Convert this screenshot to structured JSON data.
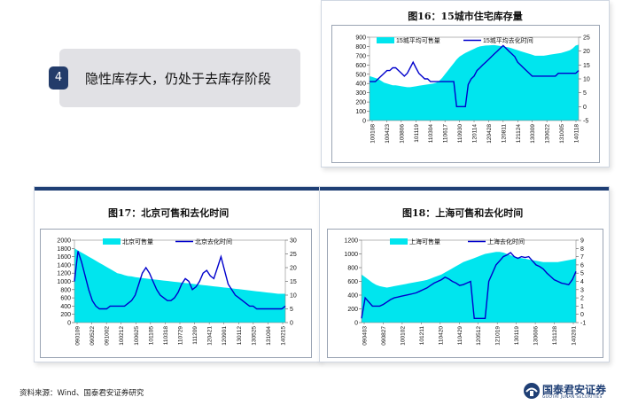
{
  "bullet": {
    "number": "4",
    "text": "隐性库存大，仍处于去库存阶段"
  },
  "footer": {
    "source": "资料来源：Wind、国泰君安证券研究",
    "logo_name": "国泰君安证券",
    "logo_sub": "GUOTAI JUNAN SECURITIES"
  },
  "chart_data": [
    {
      "id": "fig16",
      "type": "area+line",
      "title": "图16：15城市住宅库存量",
      "series": [
        {
          "name": "15城平均可售量",
          "type": "area",
          "axis": "left",
          "color": "#00e5ee",
          "values": [
            480,
            470,
            460,
            450,
            430,
            410,
            400,
            390,
            380,
            380,
            375,
            370,
            365,
            360,
            360,
            365,
            370,
            375,
            380,
            385,
            390,
            395,
            400,
            410,
            430,
            460,
            500,
            540,
            580,
            620,
            660,
            690,
            710,
            730,
            745,
            760,
            775,
            790,
            800,
            805,
            810,
            812,
            814,
            815,
            810,
            805,
            800,
            795,
            790,
            780,
            770,
            760,
            750,
            740,
            730,
            720,
            710,
            700,
            700,
            700,
            700,
            705,
            710,
            715,
            720,
            725,
            730,
            740,
            750,
            760,
            780,
            810,
            820
          ]
        },
        {
          "name": "15城平均去化时间",
          "type": "line",
          "axis": "right",
          "color": "#0000cc",
          "values": [
            9,
            9,
            9,
            10,
            11,
            12,
            13,
            13,
            14,
            14,
            13,
            12,
            11,
            12,
            14,
            16,
            14,
            12,
            11,
            10,
            10,
            9,
            9,
            9,
            9,
            9,
            9,
            9,
            9,
            9,
            0,
            0,
            0,
            0,
            8,
            10,
            11,
            13,
            14,
            15,
            16,
            17,
            18,
            19,
            20,
            21,
            22,
            21,
            20,
            19,
            18,
            16,
            15,
            14,
            13,
            12,
            11,
            11,
            11,
            11,
            11,
            11,
            11,
            11,
            11,
            12,
            12,
            12,
            12,
            12,
            12,
            12,
            13
          ]
        }
      ],
      "x_ticks": [
        "100108",
        "100423",
        "100806",
        "101119",
        "110304",
        "110617",
        "110930",
        "120114",
        "120428",
        "120811",
        "121124",
        "130309",
        "130622",
        "131005",
        "140118"
      ],
      "y_left": {
        "min": 0,
        "max": 900,
        "ticks": [
          "0",
          "100",
          "200",
          "300",
          "400",
          "500",
          "600",
          "700",
          "800",
          "900"
        ]
      },
      "y_right": {
        "min": -5,
        "max": 25,
        "ticks": [
          "-5",
          "0",
          "5",
          "10",
          "15",
          "20",
          "25"
        ]
      },
      "legend": "top"
    },
    {
      "id": "fig17",
      "type": "area+line",
      "title": "图17：北京可售和去化时间",
      "series": [
        {
          "name": "北京可售量",
          "type": "area",
          "axis": "left",
          "color": "#00e5ee",
          "values": [
            1800,
            1750,
            1700,
            1650,
            1600,
            1550,
            1500,
            1450,
            1400,
            1350,
            1300,
            1250,
            1200,
            1180,
            1150,
            1130,
            1120,
            1100,
            1090,
            1080,
            1070,
            1060,
            1050,
            1040,
            1030,
            1020,
            1010,
            1000,
            990,
            980,
            970,
            960,
            950,
            940,
            930,
            920,
            910,
            900,
            890,
            880,
            870,
            860,
            850,
            840,
            830,
            820,
            810,
            800,
            790,
            780,
            770,
            760,
            750,
            740,
            730,
            720,
            710,
            700,
            700,
            700
          ]
        },
        {
          "name": "北京去化时间",
          "type": "line",
          "axis": "right",
          "color": "#0000cc",
          "values": [
            15,
            26,
            22,
            17,
            12,
            8,
            6,
            5,
            5,
            5,
            6,
            6,
            6,
            6,
            6,
            7,
            8,
            10,
            14,
            18,
            20,
            18,
            15,
            12,
            10,
            9,
            8,
            8,
            9,
            11,
            14,
            16,
            15,
            12,
            13,
            15,
            18,
            19,
            17,
            16,
            20,
            24,
            19,
            14,
            12,
            10,
            9,
            8,
            7,
            6,
            6,
            5,
            5,
            5,
            5,
            5,
            5,
            5,
            5,
            6
          ]
        }
      ],
      "x_ticks": [
        "090109",
        "090522",
        "091002",
        "100212",
        "100625",
        "101105",
        "110318",
        "110729",
        "111209",
        "120421",
        "120901",
        "130112",
        "130525",
        "131004",
        "140215"
      ],
      "y_left": {
        "min": 0,
        "max": 2000,
        "ticks": [
          "0",
          "200",
          "400",
          "600",
          "800",
          "1000",
          "1200",
          "1400",
          "1600",
          "1800",
          "2000"
        ]
      },
      "y_right": {
        "min": 0,
        "max": 30,
        "ticks": [
          "0",
          "5",
          "10",
          "15",
          "20",
          "25",
          "30"
        ]
      },
      "legend": "top"
    },
    {
      "id": "fig18",
      "type": "area+line",
      "title": "图18：上海可售和去化时间",
      "series": [
        {
          "name": "上海可售量",
          "type": "area",
          "axis": "left",
          "color": "#00e5ee",
          "values": [
            700,
            660,
            620,
            580,
            550,
            530,
            520,
            510,
            520,
            530,
            540,
            550,
            560,
            570,
            580,
            590,
            600,
            610,
            620,
            640,
            660,
            680,
            700,
            730,
            760,
            790,
            820,
            850,
            880,
            900,
            920,
            940,
            960,
            980,
            1000,
            1010,
            1020,
            1030,
            1030,
            1020,
            1000,
            980,
            960,
            950,
            940,
            930,
            920,
            910,
            900,
            890,
            880,
            880,
            880,
            880,
            880,
            890,
            900,
            910,
            920,
            930
          ]
        },
        {
          "name": "上海去化时间",
          "type": "line",
          "axis": "right",
          "color": "#0000cc",
          "values": [
            -0.5,
            2,
            1.5,
            1,
            1,
            1,
            1.2,
            1.5,
            1.8,
            2,
            2.1,
            2.2,
            2.3,
            2.4,
            2.5,
            2.6,
            2.8,
            3,
            3.2,
            3.5,
            3.8,
            4,
            4.2,
            4.5,
            4.3,
            4,
            3.8,
            3.5,
            3.6,
            3.8,
            4,
            -0.5,
            -0.5,
            -0.5,
            -0.5,
            4,
            5,
            6,
            6.5,
            7,
            7.2,
            7.5,
            7,
            6.8,
            7,
            6.9,
            7,
            6.5,
            6,
            5.8,
            5.5,
            5,
            4.6,
            4.2,
            4,
            3.8,
            3.7,
            3.6,
            4.2,
            5.2
          ]
        }
      ],
      "x_ticks": [
        "090403",
        "090827",
        "100102",
        "101211",
        "110420",
        "110429",
        "120512",
        "121019",
        "130119",
        "130606",
        "131128",
        "140201"
      ],
      "y_left": {
        "min": 0,
        "max": 1200,
        "ticks": [
          "0",
          "200",
          "400",
          "600",
          "800",
          "1000",
          "1200"
        ]
      },
      "y_right": {
        "min": -1,
        "max": 9,
        "ticks": [
          "-1",
          "0",
          "1",
          "2",
          "3",
          "4",
          "5",
          "6",
          "7",
          "8",
          "9"
        ]
      },
      "legend": "top"
    }
  ]
}
